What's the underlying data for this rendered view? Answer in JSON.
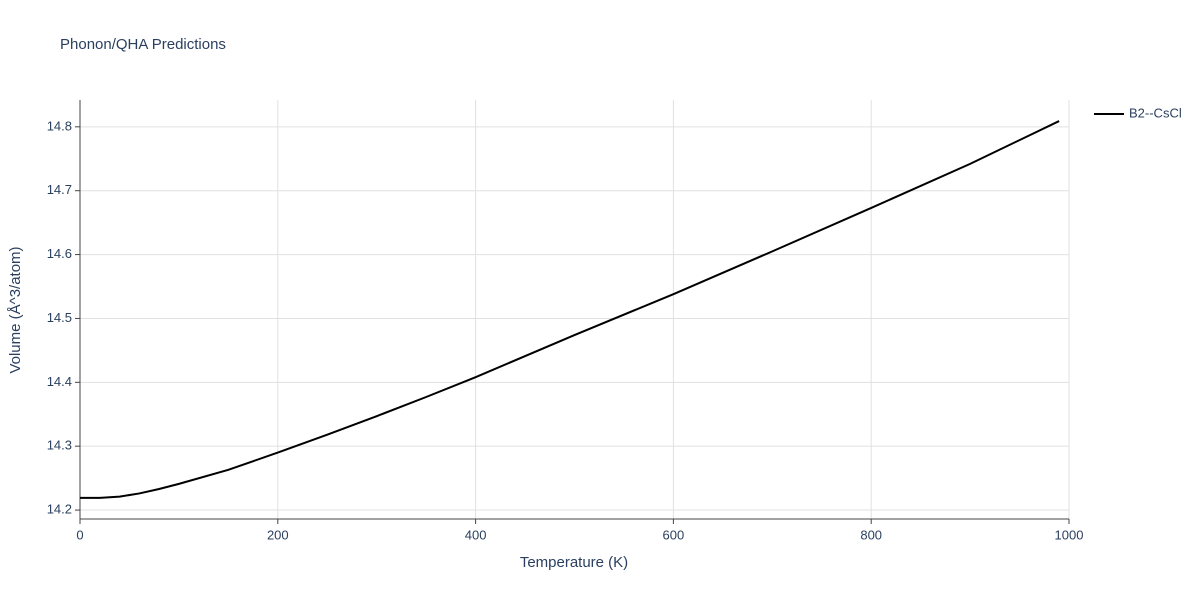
{
  "chart_data": {
    "type": "line",
    "title": "Phonon/QHA Predictions",
    "x_label": "Temperature (K)",
    "y_label": "Volume (Å^3/atom)",
    "x": [
      0,
      20,
      40,
      60,
      80,
      100,
      150,
      200,
      250,
      300,
      350,
      400,
      500,
      600,
      700,
      800,
      900,
      990
    ],
    "series": [
      {
        "name": "B2--CsCl",
        "color": "#000000",
        "values": [
          14.219,
          14.219,
          14.221,
          14.226,
          14.233,
          14.241,
          14.263,
          14.29,
          14.318,
          14.347,
          14.377,
          14.408,
          14.474,
          14.538,
          14.605,
          14.673,
          14.742,
          14.809
        ]
      }
    ],
    "xlim": [
      0,
      1000
    ],
    "xticks": [
      0,
      200,
      400,
      600,
      800,
      1000
    ],
    "ylim": [
      14.186,
      14.842
    ],
    "yticks": [
      14.2,
      14.3,
      14.4,
      14.5,
      14.6,
      14.7,
      14.8
    ],
    "grid": true,
    "legend": "top-right"
  }
}
